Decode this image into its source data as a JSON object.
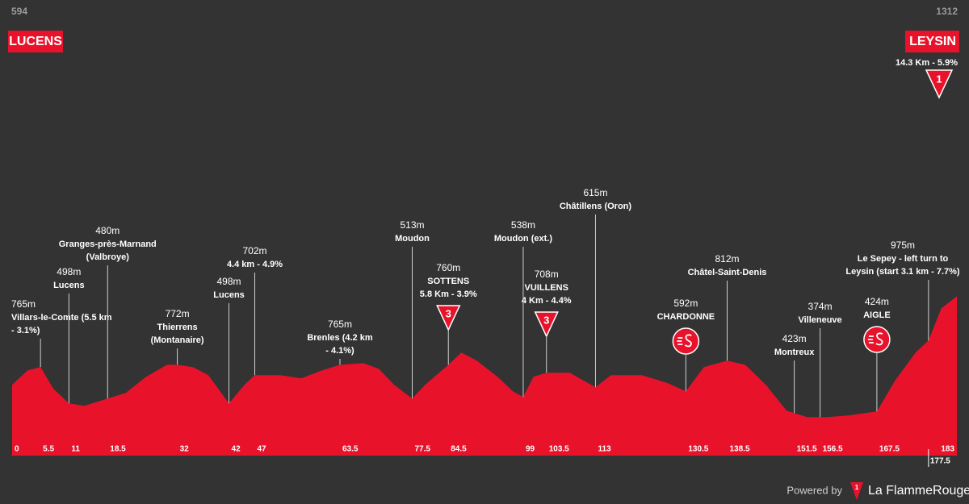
{
  "chart_data": {
    "type": "area",
    "color": "#e8132b",
    "start": {
      "altitude": "594",
      "name": "LUCENS"
    },
    "finish": {
      "altitude": "1312",
      "name": "LEYSIN",
      "climb": "14.3 Km - 5.9%",
      "icon": "1"
    },
    "xlim": [
      0,
      183
    ],
    "ylim": [
      100,
      1400
    ],
    "x": [
      0,
      3,
      5.5,
      8,
      11,
      14,
      18.5,
      22,
      26,
      30,
      32,
      35,
      38,
      42,
      45,
      47,
      52,
      56,
      60,
      63.5,
      68,
      71,
      74,
      77.5,
      80,
      84.5,
      87,
      90,
      94,
      97,
      99,
      101,
      103.5,
      108,
      113,
      116,
      122,
      127,
      130.5,
      134,
      138.5,
      142,
      146,
      150,
      154,
      158,
      162,
      167.5,
      171,
      175,
      177.5,
      180,
      183
    ],
    "values": [
      638,
      748,
      773,
      608,
      497,
      479,
      534,
      577,
      700,
      791,
      791,
      773,
      712,
      497,
      638,
      712,
      712,
      687,
      748,
      791,
      804,
      761,
      638,
      534,
      638,
      791,
      883,
      822,
      700,
      589,
      546,
      700,
      730,
      730,
      620,
      712,
      712,
      651,
      589,
      773,
      822,
      791,
      638,
      442,
      393,
      393,
      406,
      436,
      669,
      883,
      975,
      1220,
      1312
    ],
    "xticks": [
      0,
      5.5,
      11,
      18.5,
      32,
      42,
      47,
      63.5,
      77.5,
      84.5,
      99,
      103.5,
      113,
      130.5,
      138.5,
      151.5,
      156.5,
      167.5,
      177.5,
      183
    ],
    "waypoints": [
      {
        "km": 5.5,
        "lines": [
          "765m",
          "Villars-le-Comte (5.5 km",
          "- 3.1%)"
        ]
      },
      {
        "km": 11,
        "lines": [
          "498m",
          "Lucens"
        ]
      },
      {
        "km": 18.5,
        "lines": [
          "480m",
          "Granges-près-Marnand",
          "(Valbroye)"
        ]
      },
      {
        "km": 32,
        "lines": [
          "772m",
          "Thierrens",
          "(Montanaire)"
        ]
      },
      {
        "km": 42,
        "lines": [
          "498m",
          "Lucens"
        ]
      },
      {
        "km": 47,
        "lines": [
          "702m",
          "4.4 km - 4.9%"
        ]
      },
      {
        "km": 63.5,
        "lines": [
          "765m",
          "Brenles (4.2 km",
          "- 4.1%)"
        ]
      },
      {
        "km": 77.5,
        "lines": [
          "513m",
          "Moudon"
        ]
      },
      {
        "km": 84.5,
        "lines": [
          "760m",
          "SOTTENS",
          "5.8 Km - 3.9%"
        ],
        "kom": "3"
      },
      {
        "km": 99,
        "lines": [
          "538m",
          "Moudon (ext.)"
        ]
      },
      {
        "km": 103.5,
        "lines": [
          "708m",
          "VUILLENS",
          "4 Km - 4.4%"
        ],
        "kom": "3"
      },
      {
        "km": 113,
        "lines": [
          "615m",
          "Châtillens (Oron)"
        ]
      },
      {
        "km": 130.5,
        "lines": [
          "592m",
          "CHARDONNE"
        ],
        "sprint": true
      },
      {
        "km": 138.5,
        "lines": [
          "812m",
          "Châtel-Saint-Denis"
        ]
      },
      {
        "km": 151.5,
        "lines": [
          "423m",
          "Montreux"
        ]
      },
      {
        "km": 156.5,
        "lines": [
          "374m",
          "Villeneuve"
        ]
      },
      {
        "km": 167.5,
        "lines": [
          "424m",
          "AIGLE"
        ],
        "sprint": true
      },
      {
        "km": 177.5,
        "lines": [
          "975m",
          "Le Sepey - left turn to",
          "Leysin (start 3.1 km - 7.7%)"
        ]
      }
    ],
    "footer": {
      "powered": "Powered by",
      "logo_icon": "1",
      "brand": "La FlammeRouge"
    }
  }
}
